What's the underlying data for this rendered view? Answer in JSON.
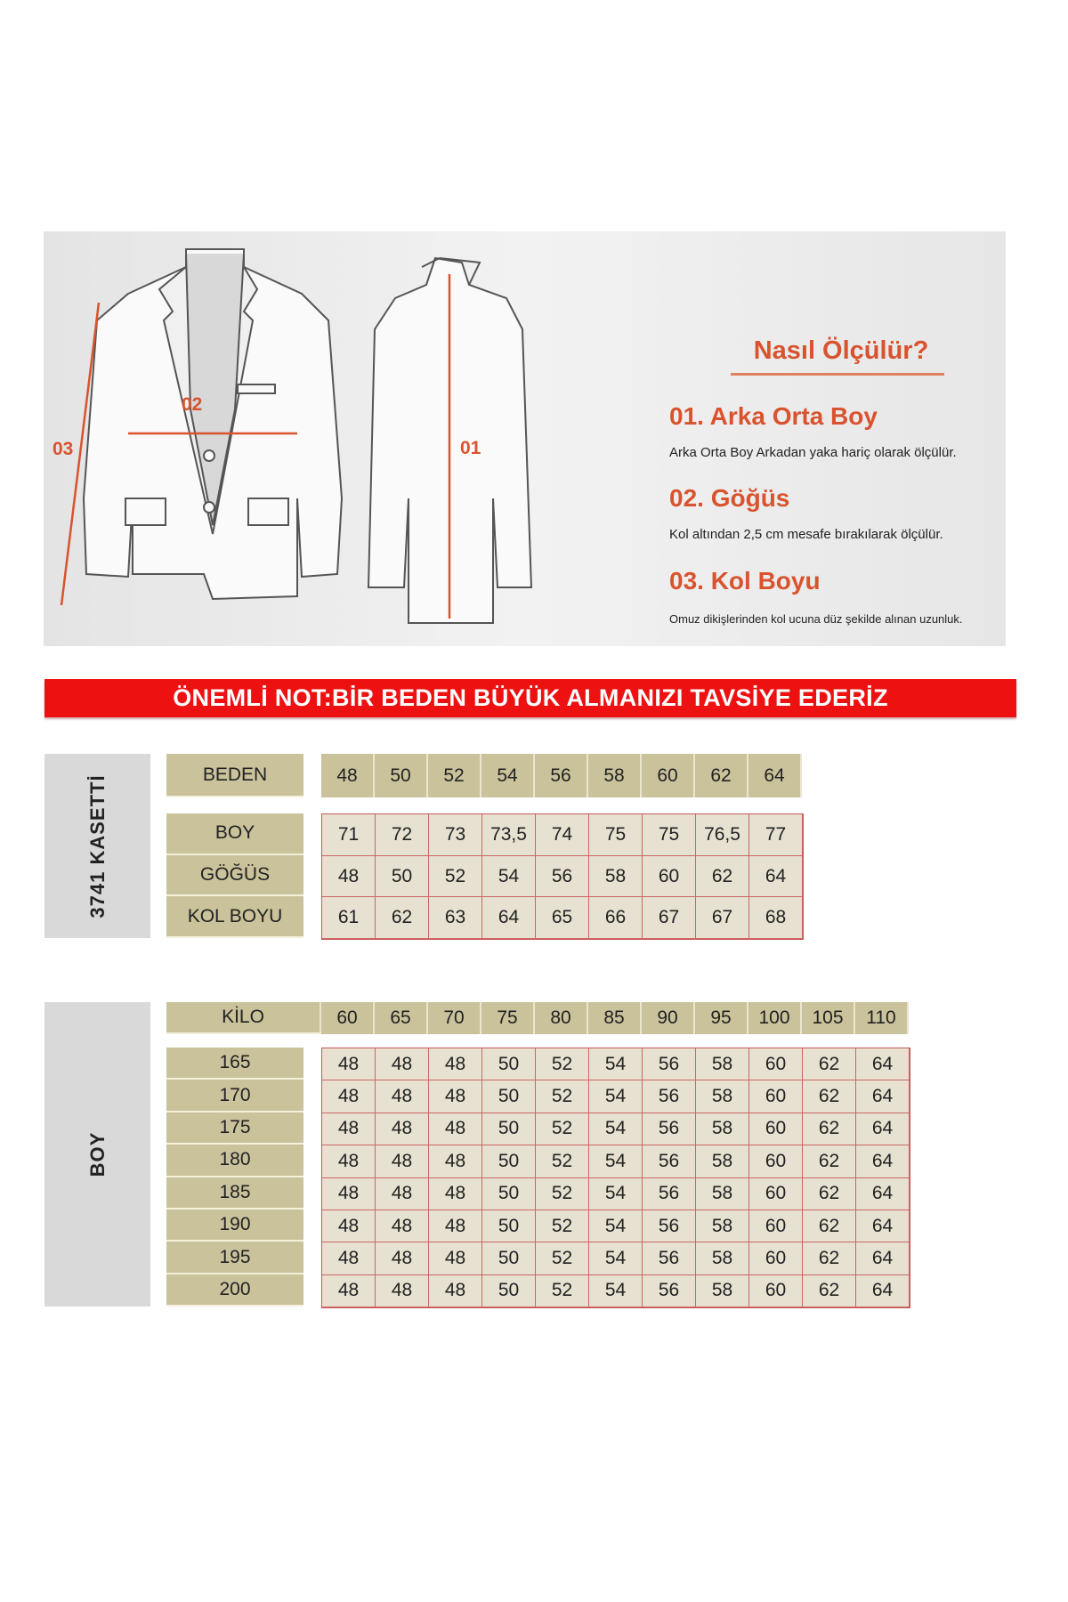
{
  "howto": {
    "title": "Nasıl Ölçülür?",
    "steps": [
      {
        "label": "01. Arka Orta Boy",
        "desc": "Arka Orta Boy Arkadan yaka hariç olarak ölçülür."
      },
      {
        "label": "02. Göğüs",
        "desc": "Kol altından 2,5 cm mesafe bırakılarak ölçülür."
      },
      {
        "label": "03. Kol Boyu",
        "desc": "Omuz dikişlerinden kol ucuna düz şekilde alınan uzunluk."
      }
    ],
    "markers": {
      "m01": "01",
      "m02": "02",
      "m03": "03"
    },
    "accent": "#d9532f"
  },
  "banner": {
    "text": "ÖNEMLİ NOT:BİR BEDEN BÜYÜK ALMANIZI TAVSİYE EDERİZ",
    "color": "#ee1111"
  },
  "table1": {
    "side_label": "3741 KASETTİ",
    "header_label": "BEDEN",
    "header": [
      "48",
      "50",
      "52",
      "54",
      "56",
      "58",
      "60",
      "62",
      "64"
    ],
    "rows": [
      {
        "label": "BOY",
        "values": [
          "71",
          "72",
          "73",
          "73,5",
          "74",
          "75",
          "75",
          "76,5",
          "77"
        ]
      },
      {
        "label": "GÖĞÜS",
        "values": [
          "48",
          "50",
          "52",
          "54",
          "56",
          "58",
          "60",
          "62",
          "64"
        ]
      },
      {
        "label": "KOL BOYU",
        "values": [
          "61",
          "62",
          "63",
          "64",
          "65",
          "66",
          "67",
          "67",
          "68"
        ]
      }
    ]
  },
  "table2": {
    "side_label": "BOY",
    "header_label": "KİLO",
    "header": [
      "60",
      "65",
      "70",
      "75",
      "80",
      "85",
      "90",
      "95",
      "100",
      "105",
      "110"
    ],
    "rows": [
      {
        "label": "165",
        "values": [
          "48",
          "48",
          "48",
          "50",
          "52",
          "54",
          "56",
          "58",
          "60",
          "62",
          "64"
        ]
      },
      {
        "label": "170",
        "values": [
          "48",
          "48",
          "48",
          "50",
          "52",
          "54",
          "56",
          "58",
          "60",
          "62",
          "64"
        ]
      },
      {
        "label": "175",
        "values": [
          "48",
          "48",
          "48",
          "50",
          "52",
          "54",
          "56",
          "58",
          "60",
          "62",
          "64"
        ]
      },
      {
        "label": "180",
        "values": [
          "48",
          "48",
          "48",
          "50",
          "52",
          "54",
          "56",
          "58",
          "60",
          "62",
          "64"
        ]
      },
      {
        "label": "185",
        "values": [
          "48",
          "48",
          "48",
          "50",
          "52",
          "54",
          "56",
          "58",
          "60",
          "62",
          "64"
        ]
      },
      {
        "label": "190",
        "values": [
          "48",
          "48",
          "48",
          "50",
          "52",
          "54",
          "56",
          "58",
          "60",
          "62",
          "64"
        ]
      },
      {
        "label": "195",
        "values": [
          "48",
          "48",
          "48",
          "50",
          "52",
          "54",
          "56",
          "58",
          "60",
          "62",
          "64"
        ]
      },
      {
        "label": "200",
        "values": [
          "48",
          "48",
          "48",
          "50",
          "52",
          "54",
          "56",
          "58",
          "60",
          "62",
          "64"
        ]
      }
    ]
  }
}
